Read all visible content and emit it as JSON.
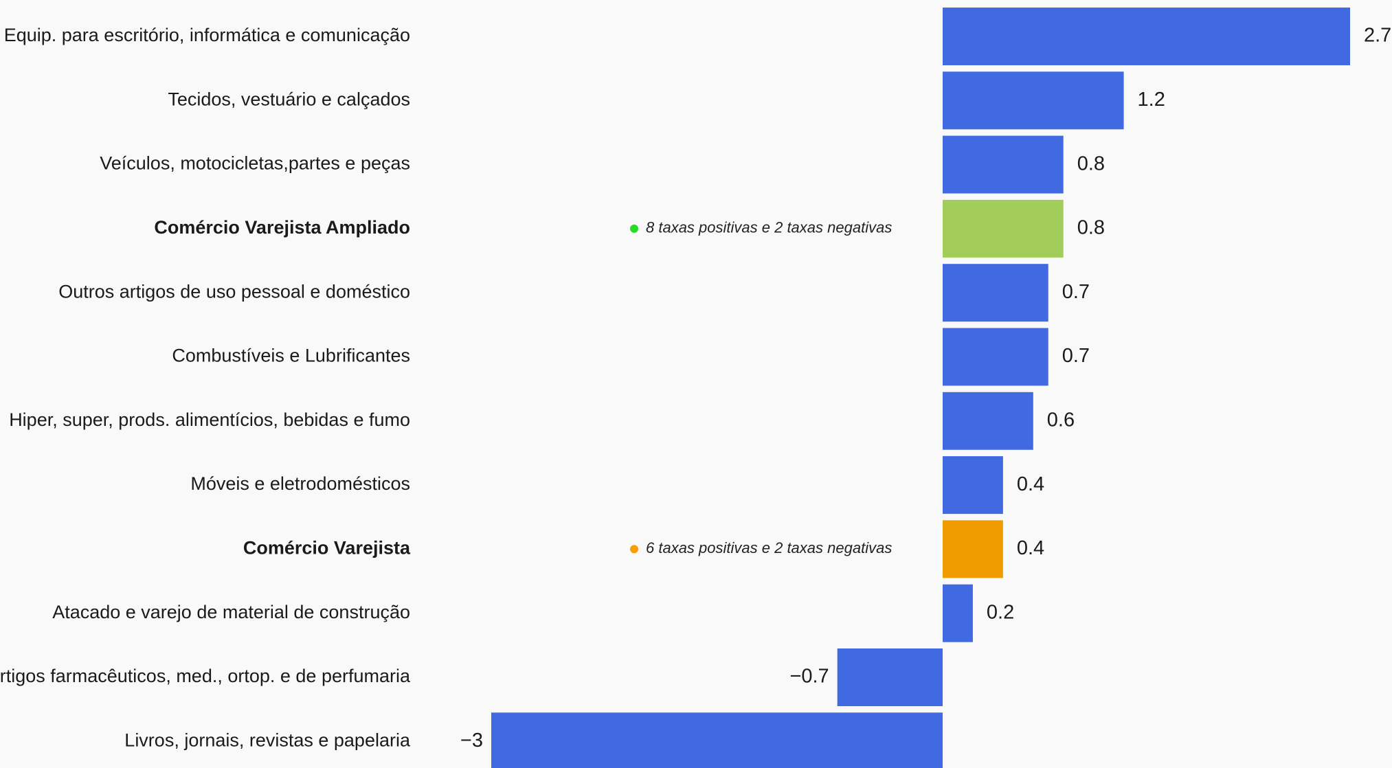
{
  "chart_data": {
    "type": "bar",
    "orientation": "horizontal",
    "title": "",
    "xlabel": "",
    "ylabel": "",
    "xlim": [
      -3,
      2.7
    ],
    "grid": false,
    "legend": "none",
    "categories": [
      "Equip. para escritório, informática e comunicação",
      "Tecidos, vestuário e calçados",
      "Veículos, motocicletas,partes e peças",
      "Comércio Varejista Ampliado",
      "Outros artigos de uso pessoal e doméstico",
      "Combustíveis e Lubrificantes",
      "Hiper, super, prods.  alimentícios, bebidas e fumo",
      "Móveis e eletrodomésticos",
      "Comércio Varejista",
      "Atacado e varejo de material de construção",
      "Artigos farmacêuticos, med., ortop. e de perfumaria",
      "Livros, jornais, revistas e papelaria"
    ],
    "values": [
      2.7,
      1.2,
      0.8,
      0.8,
      0.7,
      0.7,
      0.6,
      0.4,
      0.4,
      0.2,
      -0.7,
      -3
    ],
    "value_labels": [
      "2.7",
      "1.2",
      "0.8",
      "0.8",
      "0.7",
      "0.7",
      "0.6",
      "0.4",
      "0.4",
      "0.2",
      "−0.7",
      "−3"
    ],
    "bold": [
      false,
      false,
      false,
      true,
      false,
      false,
      false,
      false,
      true,
      false,
      false,
      false
    ],
    "colors": [
      "#4169e1",
      "#4169e1",
      "#4169e1",
      "#a3cd5a",
      "#4169e1",
      "#4169e1",
      "#4169e1",
      "#4169e1",
      "#f09c00",
      "#4169e1",
      "#4169e1",
      "#4169e1"
    ],
    "annotations": [
      {
        "category_index": 3,
        "text": "8 taxas positivas e 2 taxas negativas",
        "marker_color": "#22dd22"
      },
      {
        "category_index": 8,
        "text": "6 taxas positivas e 2 taxas negativas",
        "marker_color": "#f5a000"
      }
    ]
  }
}
